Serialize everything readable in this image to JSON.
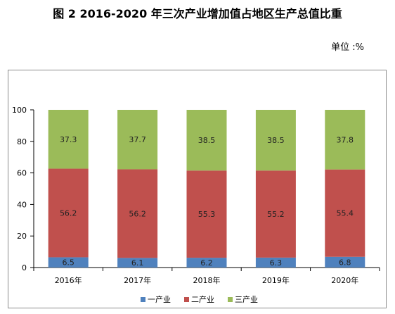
{
  "title": "图 2    2016-2020 年三次产业增加值占地区生产总值比重",
  "unit": "单位 :%",
  "colors": {
    "primary": "#4f81bd",
    "secondary": "#c0504d",
    "tertiary": "#9bbb59",
    "axis": "#000000",
    "frame": "#8c8c8c"
  },
  "chart_data": {
    "type": "bar",
    "stacked": true,
    "title": "图 2    2016-2020 年三次产业增加值占地区生产总值比重",
    "ylabel": "",
    "xlabel": "",
    "ylim": [
      0,
      100
    ],
    "yticks": [
      0,
      20,
      40,
      60,
      80,
      100
    ],
    "grid": false,
    "legend_position": "bottom",
    "categories": [
      "2016年",
      "2017年",
      "2018年",
      "2019年",
      "2020年"
    ],
    "series": [
      {
        "name": "一产业",
        "values": [
          6.5,
          6.1,
          6.2,
          6.3,
          6.8
        ],
        "color": "#4f81bd"
      },
      {
        "name": "二产业",
        "values": [
          56.2,
          56.2,
          55.3,
          55.2,
          55.4
        ],
        "color": "#c0504d"
      },
      {
        "name": "三产业",
        "values": [
          37.3,
          37.7,
          38.5,
          38.5,
          37.8
        ],
        "color": "#9bbb59"
      }
    ]
  }
}
